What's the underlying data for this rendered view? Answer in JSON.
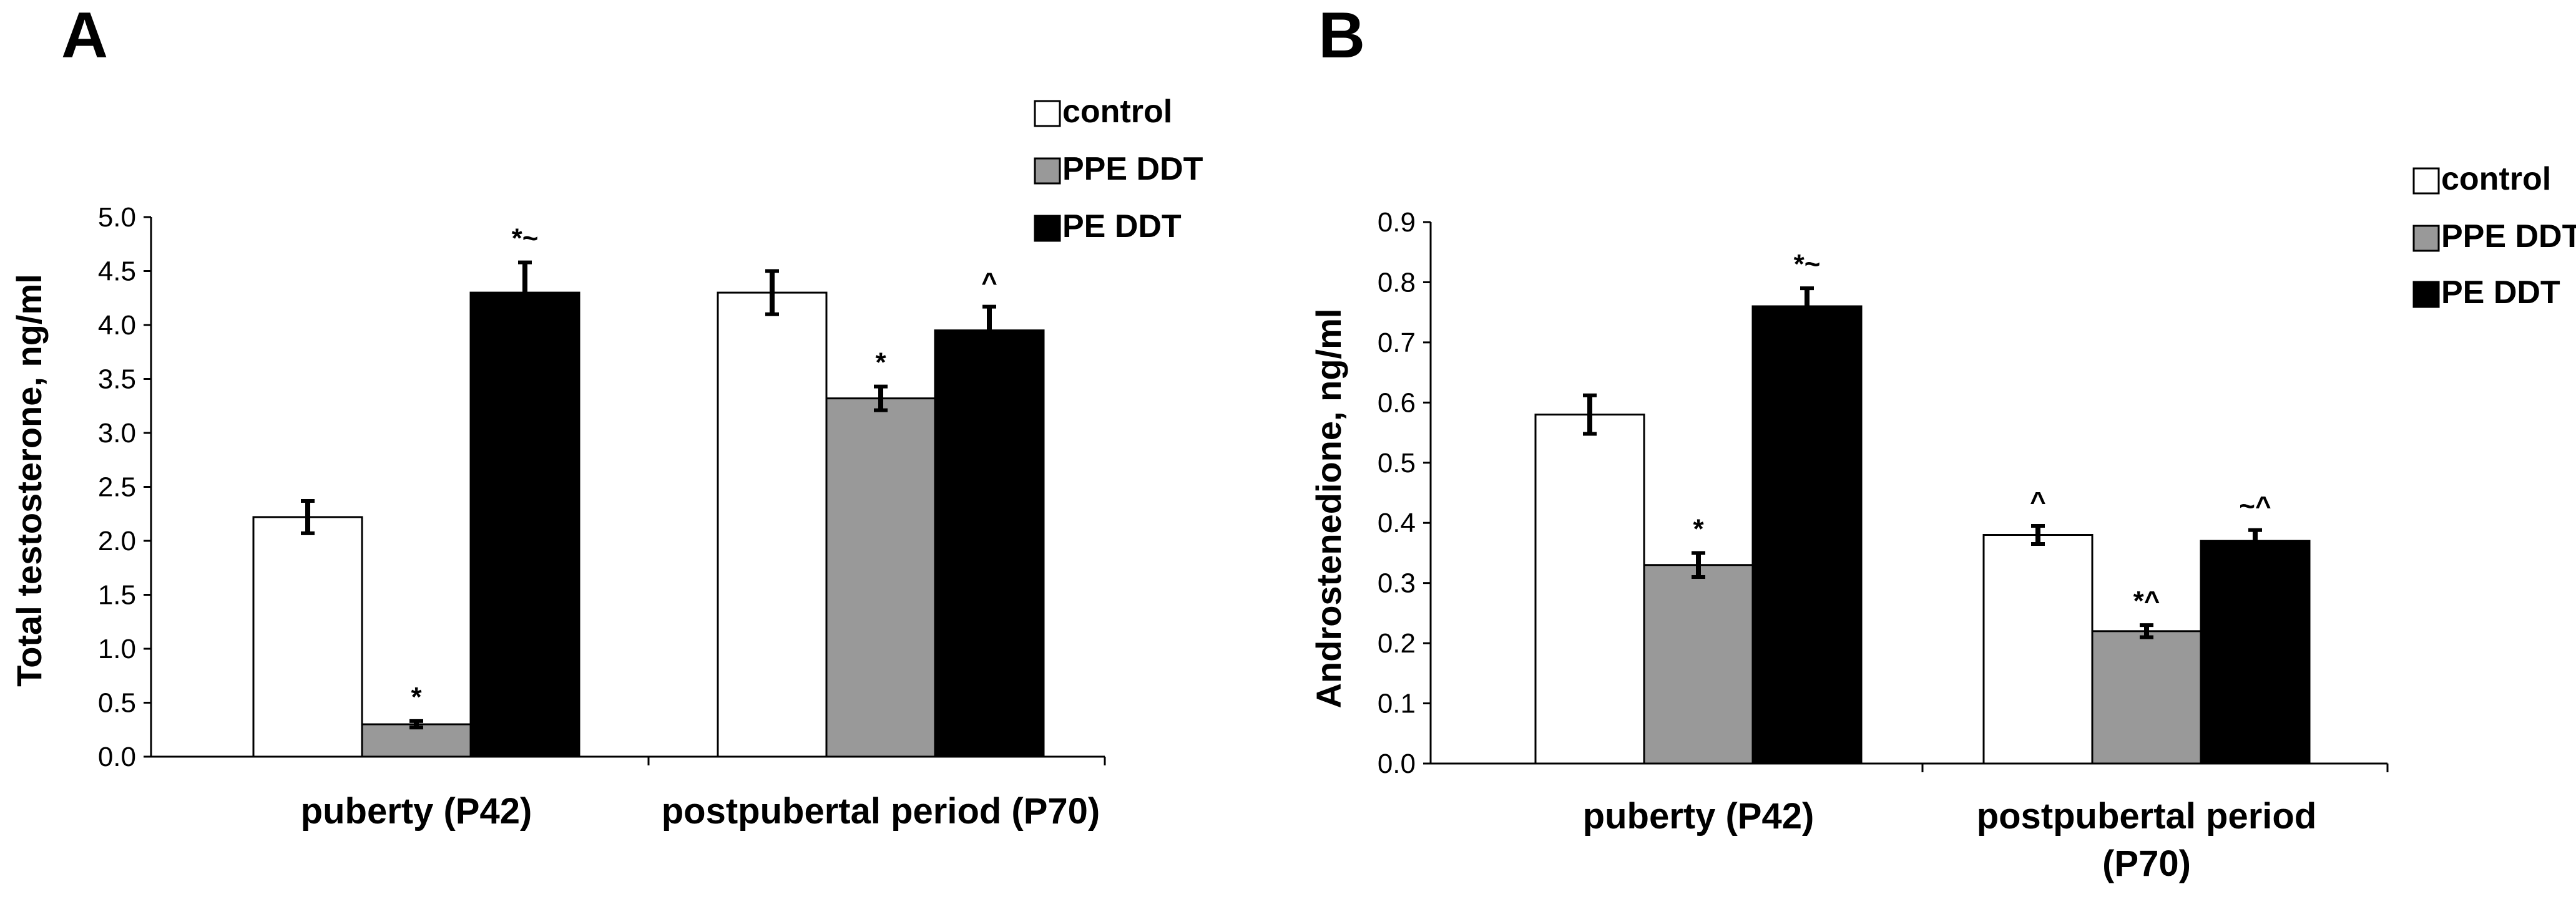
{
  "colors": {
    "control": "#ffffff",
    "PPE DDT": "#999999",
    "PE DDT": "#000000"
  },
  "chart_data": [
    {
      "type": "bar",
      "panel": "A",
      "ylabel": "Total testosterone,  ng/ml",
      "ylim": [
        0,
        5.0
      ],
      "yticks": [
        "0.0",
        "0.5",
        "1.0",
        "1.5",
        "2.0",
        "2.5",
        "3.0",
        "3.5",
        "4.0",
        "4.5",
        "5.0"
      ],
      "categories": [
        [
          "puberty (P42)"
        ],
        [
          "postpubertal period (P70)"
        ]
      ],
      "legend": [
        "control",
        "PPE DDT",
        "PE DDT"
      ],
      "series": [
        {
          "name": "control",
          "values": [
            2.22,
            4.3
          ],
          "errors": [
            0.15,
            0.2
          ],
          "annotations": [
            "",
            ""
          ]
        },
        {
          "name": "PPE DDT",
          "values": [
            0.3,
            3.32
          ],
          "errors": [
            0.03,
            0.11
          ],
          "annotations": [
            "*",
            "*"
          ]
        },
        {
          "name": "PE DDT",
          "values": [
            4.3,
            3.95
          ],
          "errors": [
            0.28,
            0.22
          ],
          "annotations": [
            "*~",
            "^"
          ]
        }
      ]
    },
    {
      "type": "bar",
      "panel": "B",
      "ylabel": "Androstenedione,  ng/ml",
      "ylim": [
        0,
        0.9
      ],
      "yticks": [
        "0.0",
        "0.1",
        "0.2",
        "0.3",
        "0.4",
        "0.5",
        "0.6",
        "0.7",
        "0.8",
        "0.9"
      ],
      "categories": [
        [
          "puberty (P42)"
        ],
        [
          "postpubertal period",
          "(P70)"
        ]
      ],
      "legend": [
        "control",
        "PPE DDT",
        "PE DDT"
      ],
      "series": [
        {
          "name": "control",
          "values": [
            0.58,
            0.38
          ],
          "errors": [
            0.032,
            0.015
          ],
          "annotations": [
            "",
            "^"
          ]
        },
        {
          "name": "PPE DDT",
          "values": [
            0.33,
            0.22
          ],
          "errors": [
            0.02,
            0.01
          ],
          "annotations": [
            "*",
            "*^"
          ]
        },
        {
          "name": "PE DDT",
          "values": [
            0.76,
            0.37
          ],
          "errors": [
            0.03,
            0.018
          ],
          "annotations": [
            "*~",
            "~^"
          ]
        }
      ]
    }
  ]
}
